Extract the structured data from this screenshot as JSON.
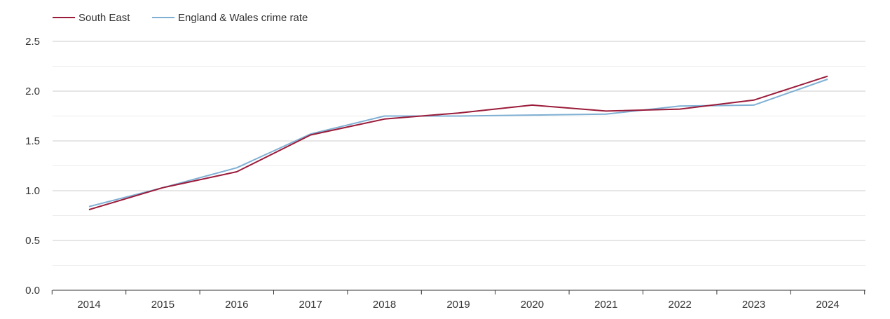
{
  "chart_data": {
    "type": "line",
    "title": "",
    "xlabel": "",
    "ylabel": "",
    "categories": [
      "2014",
      "2015",
      "2016",
      "2017",
      "2018",
      "2019",
      "2020",
      "2021",
      "2022",
      "2023",
      "2024"
    ],
    "ylim": [
      0,
      2.5
    ],
    "yticks": [
      "0.0",
      "0.5",
      "1.0",
      "1.5",
      "2.0",
      "2.5"
    ],
    "grid": true,
    "legend_position": "top-left",
    "series": [
      {
        "name": "South East",
        "color": "#9b1b3a",
        "values": [
          0.81,
          1.03,
          1.19,
          1.56,
          1.72,
          1.78,
          1.86,
          1.8,
          1.82,
          1.91,
          2.15
        ]
      },
      {
        "name": "England & Wales crime rate",
        "color": "#7fb0d4",
        "values": [
          0.84,
          1.03,
          1.23,
          1.57,
          1.75,
          1.75,
          1.76,
          1.77,
          1.85,
          1.86,
          2.12
        ]
      }
    ]
  }
}
